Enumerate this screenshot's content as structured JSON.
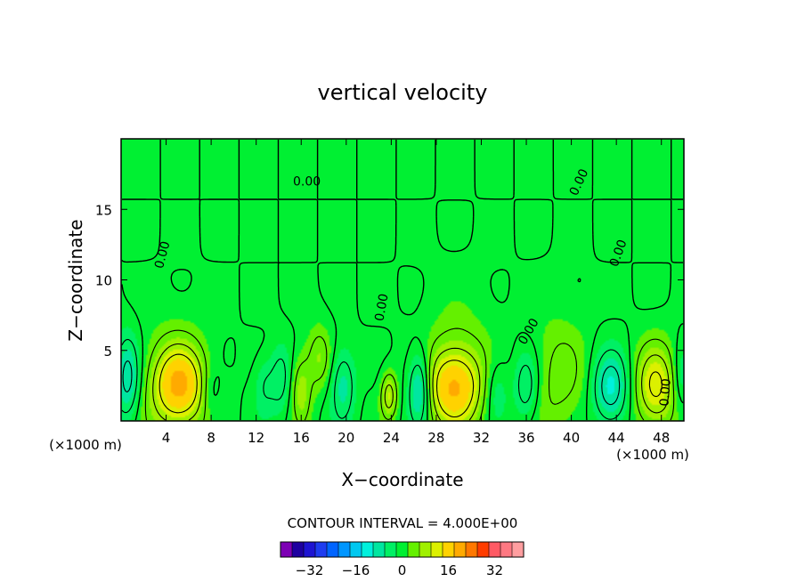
{
  "chart_data": {
    "type": "heatmap",
    "subtype": "filled contour",
    "title": "vertical velocity",
    "xlabel": "X−coordinate",
    "ylabel": "Z−coordinate",
    "x_unit_left": "(×1000 m)",
    "x_unit_right": "(×1000 m)",
    "xlim": [
      0,
      50
    ],
    "ylim": [
      0,
      20
    ],
    "xticks": [
      4,
      8,
      12,
      16,
      20,
      24,
      28,
      32,
      36,
      40,
      44,
      48
    ],
    "yticks": [
      5,
      10,
      15
    ],
    "contour_interval_text": "CONTOUR INTERVAL = 4.000E+00",
    "contour_labels": [
      {
        "text": "0.00",
        "x": 16.5,
        "y": 16.7,
        "rot": 0
      },
      {
        "text": "0.00",
        "x": 41.0,
        "y": 16.8,
        "rot": -65
      },
      {
        "text": "0.00",
        "x": 4.0,
        "y": 11.7,
        "rot": -75
      },
      {
        "text": "0.00",
        "x": 23.5,
        "y": 8.0,
        "rot": -80
      },
      {
        "text": "0.00",
        "x": 36.5,
        "y": 6.2,
        "rot": -60
      },
      {
        "text": "0.00",
        "x": 44.5,
        "y": 11.8,
        "rot": -70
      },
      {
        "text": "0.00",
        "x": 48.7,
        "y": 2.0,
        "rot": -85
      }
    ],
    "positive_cells": [
      {
        "x": 5.2,
        "z": 2.6,
        "amp": 14,
        "rx": 2.2,
        "rz": 2.6
      },
      {
        "x": 4.8,
        "z": 2.0,
        "amp": 6,
        "rx": 3.0,
        "rz": 4.5
      },
      {
        "x": 16.0,
        "z": 2.2,
        "amp": 7,
        "rx": 0.9,
        "rz": 2.5
      },
      {
        "x": 17.6,
        "z": 4.5,
        "amp": 6,
        "rx": 1.1,
        "rz": 2.3
      },
      {
        "x": 23.8,
        "z": 1.8,
        "amp": 10,
        "rx": 0.7,
        "rz": 1.6
      },
      {
        "x": 29.5,
        "z": 2.4,
        "amp": 14,
        "rx": 2.4,
        "rz": 2.6
      },
      {
        "x": 30.0,
        "z": 3.0,
        "amp": 5,
        "rx": 3.2,
        "rz": 5.0
      },
      {
        "x": 39.0,
        "z": 3.0,
        "amp": 5,
        "rx": 2.6,
        "rz": 4.5
      },
      {
        "x": 47.5,
        "z": 2.4,
        "amp": 13,
        "rx": 1.9,
        "rz": 3.0
      }
    ],
    "negative_cells": [
      {
        "x": 0.6,
        "z": 3.0,
        "amp": -10,
        "rx": 1.1,
        "rz": 3.0
      },
      {
        "x": 8.0,
        "z": 2.0,
        "amp": -4,
        "rx": 0.9,
        "rz": 2.0
      },
      {
        "x": 12.8,
        "z": 2.6,
        "amp": -4,
        "rx": 1.0,
        "rz": 2.0
      },
      {
        "x": 14.2,
        "z": 3.0,
        "amp": -5,
        "rx": 0.9,
        "rz": 2.5
      },
      {
        "x": 19.7,
        "z": 2.6,
        "amp": -7,
        "rx": 1.1,
        "rz": 2.6
      },
      {
        "x": 26.5,
        "z": 2.3,
        "amp": -12,
        "rx": 1.0,
        "rz": 2.6
      },
      {
        "x": 33.3,
        "z": 2.2,
        "amp": -5,
        "rx": 1.1,
        "rz": 2.4
      },
      {
        "x": 36.0,
        "z": 2.4,
        "amp": -7,
        "rx": 1.1,
        "rz": 2.5
      },
      {
        "x": 43.5,
        "z": 2.3,
        "amp": -11,
        "rx": 1.6,
        "rz": 2.6
      },
      {
        "x": 49.7,
        "z": 3.0,
        "amp": -5,
        "rx": 0.8,
        "rz": 2.4
      }
    ],
    "colorbar": {
      "labels": [
        "−32",
        "−16",
        "0",
        "16",
        "32"
      ],
      "colors": [
        "#7d00b4",
        "#1e00a0",
        "#1e14d2",
        "#1e3cf0",
        "#0064ff",
        "#0096ff",
        "#00c8f0",
        "#00f0dc",
        "#00e6a0",
        "#00f064",
        "#00f032",
        "#64f000",
        "#a0f000",
        "#dcf000",
        "#ffd200",
        "#ffaa00",
        "#ff7800",
        "#ff3c00",
        "#ff5a64",
        "#ff7882",
        "#ff9ea0"
      ]
    }
  }
}
